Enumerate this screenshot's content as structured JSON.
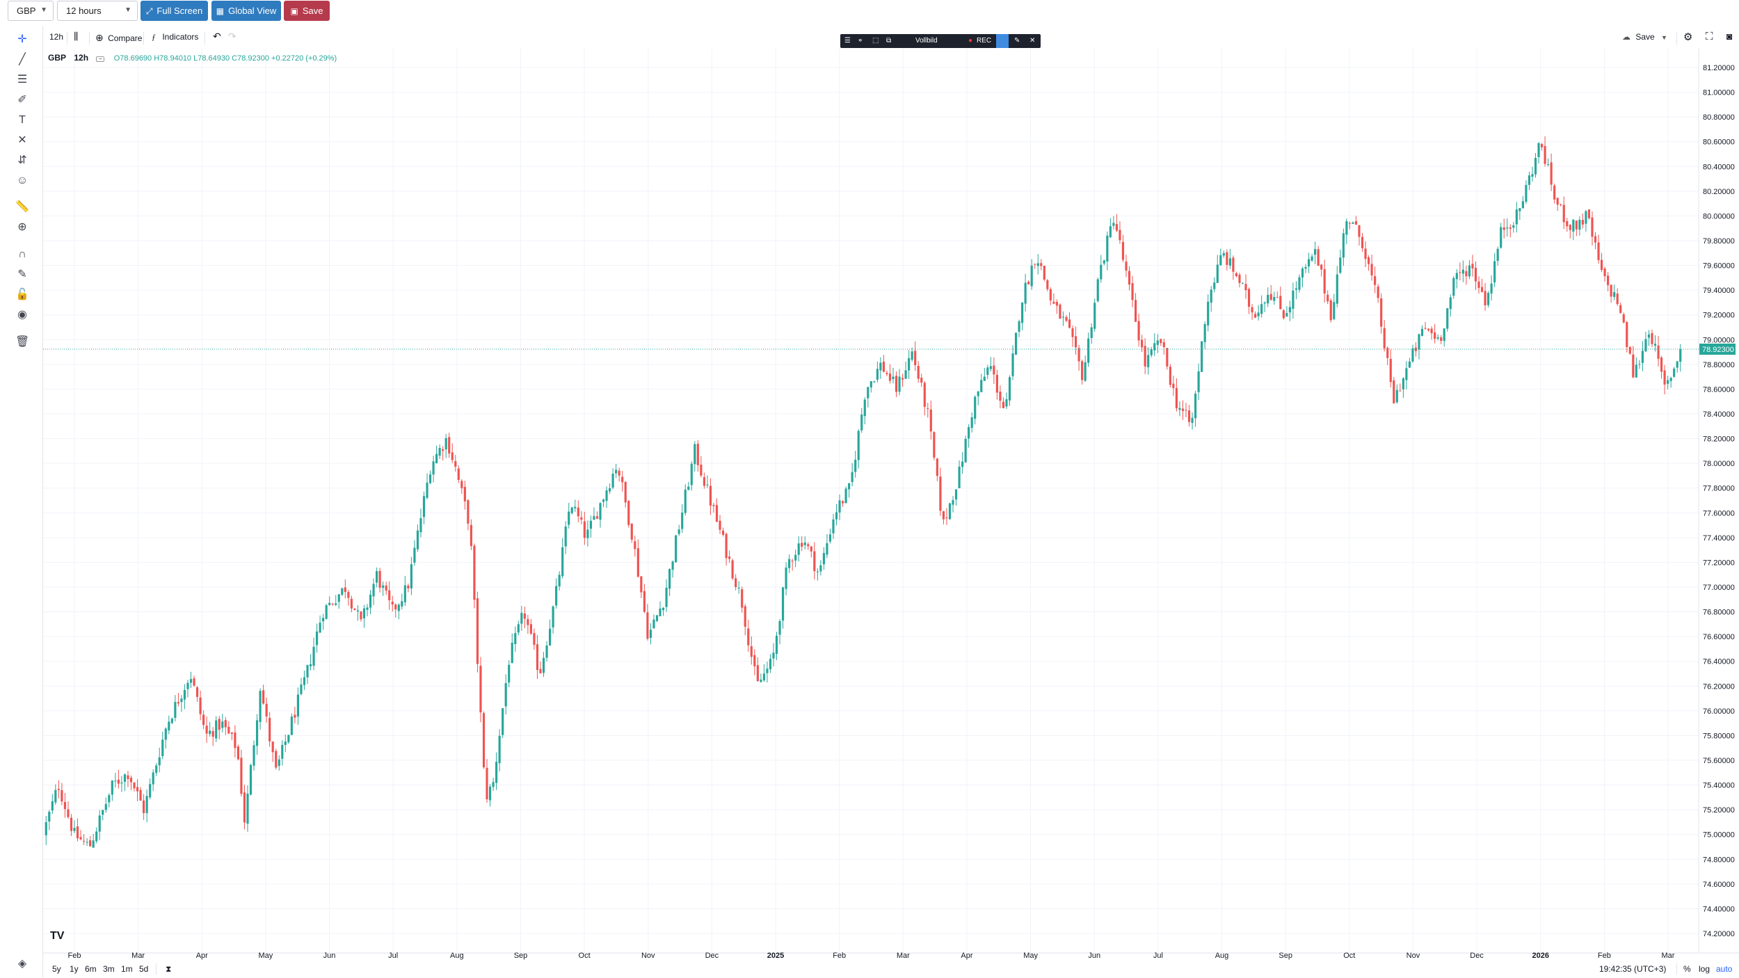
{
  "topbar": {
    "symbol_select": "GBP",
    "interval_select": "12 hours",
    "fullscreen_label": "Full Screen",
    "globalview_label": "Global View",
    "save_label": "Save",
    "colors": {
      "fullscreen": "#2f7bbf",
      "globalview": "#2f7bbf",
      "save": "#b53a4c"
    }
  },
  "toolbar": {
    "interval": "12h",
    "compare_label": "Compare",
    "indicators_label": "Indicators",
    "save_label": "Save",
    "icons": [
      "bar-style-icon",
      "compare-plus-icon",
      "indicators-fx-icon",
      "undo-icon",
      "redo-icon",
      "cloud-icon",
      "settings-icon",
      "fullscreen-icon",
      "camera-icon"
    ]
  },
  "recorder": {
    "vollbild_label": "Vollbild",
    "rec_label": "REC"
  },
  "legend": {
    "symbol": "GBP",
    "interval": "12h",
    "ohlc": "O78.69690 H78.94010 L78.64930 C78.92300 +0.22720 (+0.29%)"
  },
  "left_tools": [
    "crosshair-icon",
    "trendline-icon",
    "fib-icon",
    "brush-icon",
    "text-icon",
    "pattern-icon",
    "measure-icon",
    "emoji-icon",
    "ruler-icon",
    "zoom-icon",
    "magnet-icon",
    "lock-drawings-icon",
    "lock-icon",
    "eye-icon",
    "trash-icon",
    "layers-icon"
  ],
  "bottom": {
    "ranges": [
      "5y",
      "1y",
      "6m",
      "3m",
      "1m",
      "5d"
    ],
    "clock": "19:42:35 (UTC+3)",
    "percent_label": "%",
    "log_label": "log",
    "auto_label": "auto"
  },
  "chart_data": {
    "type": "candlestick",
    "title": "",
    "y_ticks": [
      "81.20000",
      "81.00000",
      "80.80000",
      "80.60000",
      "80.40000",
      "80.20000",
      "80.00000",
      "79.80000",
      "79.60000",
      "79.40000",
      "79.20000",
      "79.00000",
      "78.80000",
      "78.60000",
      "78.40000",
      "78.20000",
      "78.00000",
      "77.80000",
      "77.60000",
      "77.40000",
      "77.20000",
      "77.00000",
      "76.80000",
      "76.60000",
      "76.40000",
      "76.20000",
      "76.00000",
      "75.80000",
      "75.60000",
      "75.40000",
      "75.20000",
      "75.00000",
      "74.80000",
      "74.60000",
      "74.40000",
      "74.20000"
    ],
    "ylim": [
      74.1,
      81.3
    ],
    "x_labels": [
      "Feb",
      "Mar",
      "Apr",
      "May",
      "Jun",
      "Jul",
      "Aug",
      "Sep",
      "Oct",
      "Nov",
      "Dec",
      "2025",
      "Feb",
      "Mar",
      "Apr",
      "May",
      "Jun",
      "Jul",
      "Aug",
      "Sep",
      "Oct",
      "Nov",
      "Dec",
      "2026",
      "Feb",
      "Mar"
    ],
    "x_label_bold": [
      "2025",
      "2026"
    ],
    "last_price": "78.92300",
    "last_price_value": 78.923,
    "colors": {
      "up": "#26a69a",
      "down": "#ef5350",
      "last_price": "#26a69a",
      "grid": "#f0f3fa"
    },
    "path": [
      [
        0,
        75.0
      ],
      [
        2,
        75.4
      ],
      [
        4,
        75.0
      ],
      [
        6,
        74.9
      ],
      [
        9,
        75.4
      ],
      [
        11,
        75.5
      ],
      [
        13,
        75.2
      ],
      [
        16,
        75.9
      ],
      [
        19,
        76.3
      ],
      [
        21,
        75.8
      ],
      [
        23,
        75.9
      ],
      [
        25,
        75.7
      ],
      [
        26,
        75.1
      ],
      [
        28,
        76.2
      ],
      [
        30,
        75.5
      ],
      [
        31,
        75.7
      ],
      [
        34,
        76.3
      ],
      [
        36,
        76.8
      ],
      [
        39,
        77.0
      ],
      [
        41,
        76.7
      ],
      [
        43,
        77.1
      ],
      [
        45,
        76.8
      ],
      [
        47,
        77.0
      ],
      [
        50,
        78.0
      ],
      [
        52,
        78.2
      ],
      [
        53,
        78.0
      ],
      [
        55,
        77.5
      ],
      [
        57,
        75.3
      ],
      [
        58,
        75.4
      ],
      [
        60,
        76.4
      ],
      [
        62,
        76.8
      ],
      [
        64,
        76.3
      ],
      [
        66,
        76.9
      ],
      [
        68,
        77.7
      ],
      [
        70,
        77.4
      ],
      [
        72,
        77.7
      ],
      [
        74,
        78.0
      ],
      [
        76,
        77.4
      ],
      [
        78,
        76.6
      ],
      [
        80,
        76.9
      ],
      [
        82,
        77.5
      ],
      [
        84,
        78.1
      ],
      [
        86,
        77.7
      ],
      [
        88,
        77.3
      ],
      [
        90,
        76.9
      ],
      [
        92,
        76.2
      ],
      [
        94,
        76.4
      ],
      [
        96,
        77.2
      ],
      [
        98,
        77.4
      ],
      [
        100,
        77.1
      ],
      [
        102,
        77.6
      ],
      [
        104,
        77.8
      ],
      [
        106,
        78.6
      ],
      [
        108,
        78.8
      ],
      [
        110,
        78.6
      ],
      [
        112,
        78.9
      ],
      [
        114,
        78.4
      ],
      [
        116,
        77.5
      ],
      [
        118,
        77.9
      ],
      [
        120,
        78.5
      ],
      [
        122,
        78.8
      ],
      [
        124,
        78.4
      ],
      [
        126,
        79.3
      ],
      [
        128,
        79.7
      ],
      [
        130,
        79.3
      ],
      [
        132,
        79.1
      ],
      [
        134,
        78.7
      ],
      [
        136,
        79.5
      ],
      [
        138,
        80.0
      ],
      [
        140,
        79.4
      ],
      [
        142,
        78.8
      ],
      [
        144,
        79.0
      ],
      [
        146,
        78.5
      ],
      [
        148,
        78.3
      ],
      [
        150,
        79.3
      ],
      [
        152,
        79.7
      ],
      [
        154,
        79.5
      ],
      [
        156,
        79.2
      ],
      [
        158,
        79.4
      ],
      [
        160,
        79.2
      ],
      [
        162,
        79.5
      ],
      [
        164,
        79.7
      ],
      [
        166,
        79.2
      ],
      [
        168,
        80.0
      ],
      [
        170,
        79.8
      ],
      [
        172,
        79.3
      ],
      [
        174,
        78.5
      ],
      [
        176,
        78.8
      ],
      [
        178,
        79.1
      ],
      [
        180,
        79.0
      ],
      [
        182,
        79.5
      ],
      [
        184,
        79.6
      ],
      [
        186,
        79.3
      ],
      [
        188,
        79.9
      ],
      [
        190,
        80.0
      ],
      [
        192,
        80.4
      ],
      [
        193,
        80.6
      ],
      [
        195,
        80.1
      ],
      [
        197,
        79.9
      ],
      [
        199,
        80.0
      ],
      [
        201,
        79.5
      ],
      [
        203,
        79.3
      ],
      [
        205,
        78.7
      ],
      [
        207,
        79.1
      ],
      [
        209,
        78.6
      ],
      [
        211,
        78.9
      ]
    ]
  }
}
